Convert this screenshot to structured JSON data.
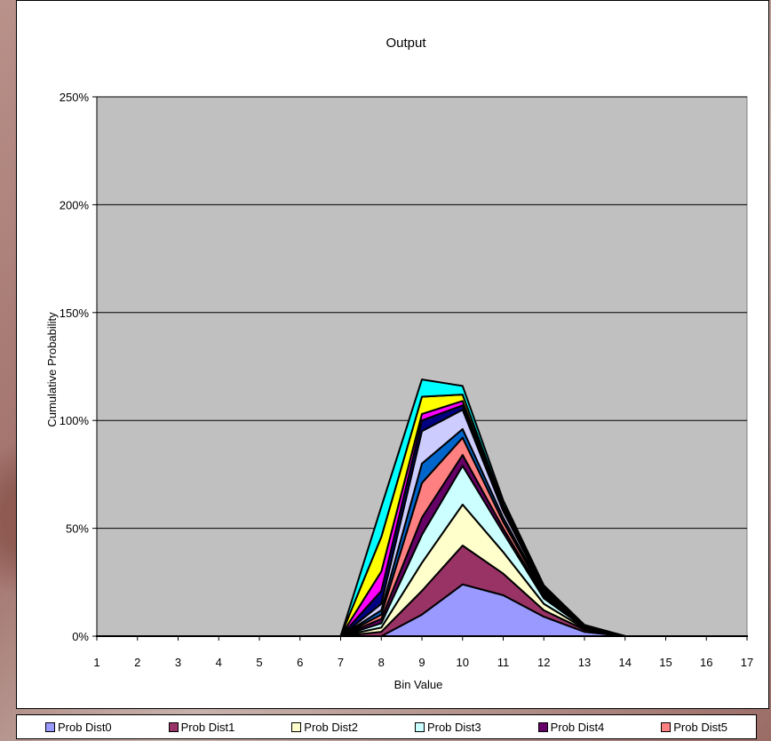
{
  "chart_data": {
    "type": "area",
    "stacked": true,
    "title": "Output",
    "xlabel": "Bin Value",
    "ylabel": "Cumulative Probability",
    "x": [
      1,
      2,
      3,
      4,
      5,
      6,
      7,
      8,
      9,
      10,
      11,
      12,
      13,
      14,
      15,
      16,
      17
    ],
    "y_ticks": [
      "0%",
      "50%",
      "100%",
      "150%",
      "200%",
      "250%"
    ],
    "ylim": [
      0,
      2.5
    ],
    "grid": true,
    "plot_background": "#c0c0c0",
    "legend_position": "bottom",
    "series": [
      {
        "name": "Prob Dist0",
        "color": "#9999ff",
        "values": [
          0,
          0,
          0,
          0,
          0,
          0,
          0,
          0,
          0.1,
          0.24,
          0.19,
          0.09,
          0.02,
          0,
          0,
          0,
          0
        ]
      },
      {
        "name": "Prob Dist1",
        "color": "#993366",
        "values": [
          0,
          0,
          0,
          0,
          0,
          0,
          0,
          0.02,
          0.11,
          0.18,
          0.1,
          0.03,
          0.01,
          0,
          0,
          0,
          0
        ]
      },
      {
        "name": "Prob Dist2",
        "color": "#ffffcc",
        "values": [
          0,
          0,
          0,
          0,
          0,
          0,
          0,
          0.02,
          0.13,
          0.19,
          0.1,
          0.03,
          0.005,
          0,
          0,
          0,
          0
        ]
      },
      {
        "name": "Prob Dist3",
        "color": "#ccffff",
        "values": [
          0,
          0,
          0,
          0,
          0,
          0,
          0,
          0.02,
          0.13,
          0.18,
          0.09,
          0.025,
          0.005,
          0,
          0,
          0,
          0
        ]
      },
      {
        "name": "Prob Dist4",
        "color": "#660066",
        "values": [
          0,
          0,
          0,
          0,
          0,
          0,
          0,
          0.02,
          0.08,
          0.05,
          0.02,
          0.01,
          0.002,
          0,
          0,
          0,
          0
        ]
      },
      {
        "name": "Prob Dist5",
        "color": "#ff8080",
        "values": [
          0,
          0,
          0,
          0,
          0,
          0,
          0,
          0.02,
          0.16,
          0.08,
          0.03,
          0.01,
          0.002,
          0,
          0,
          0,
          0
        ]
      },
      {
        "name": "",
        "color": "#0066cc",
        "values": [
          0,
          0,
          0,
          0,
          0,
          0,
          0,
          0.02,
          0.09,
          0.04,
          0.02,
          0.01,
          0.002,
          0,
          0,
          0,
          0
        ]
      },
      {
        "name": "",
        "color": "#ccccff",
        "values": [
          0,
          0,
          0,
          0,
          0,
          0,
          0,
          0.03,
          0.15,
          0.09,
          0.03,
          0.01,
          0.002,
          0,
          0,
          0,
          0
        ]
      },
      {
        "name": "",
        "color": "#000080",
        "values": [
          0,
          0,
          0,
          0,
          0,
          0,
          0,
          0.06,
          0.05,
          0.02,
          0.01,
          0.005,
          0.001,
          0,
          0,
          0,
          0
        ]
      },
      {
        "name": "",
        "color": "#ff00ff",
        "values": [
          0,
          0,
          0,
          0,
          0,
          0,
          0,
          0.09,
          0.03,
          0.02,
          0.01,
          0.005,
          0.001,
          0,
          0,
          0,
          0
        ]
      },
      {
        "name": "",
        "color": "#ffff00",
        "values": [
          0,
          0,
          0,
          0,
          0,
          0,
          0,
          0.16,
          0.08,
          0.03,
          0.01,
          0.005,
          0.001,
          0,
          0,
          0,
          0
        ]
      },
      {
        "name": "",
        "color": "#00ffff",
        "values": [
          0,
          0,
          0,
          0,
          0,
          0,
          0,
          0.14,
          0.08,
          0.04,
          0.02,
          0.005,
          0.001,
          0,
          0,
          0,
          0
        ]
      }
    ]
  },
  "legend": [
    {
      "label": "Prob Dist0",
      "color": "#9999ff"
    },
    {
      "label": "Prob Dist1",
      "color": "#993366"
    },
    {
      "label": "Prob Dist2",
      "color": "#ffffcc"
    },
    {
      "label": "Prob Dist3",
      "color": "#ccffff"
    },
    {
      "label": "Prob Dist4",
      "color": "#660066"
    },
    {
      "label": "Prob Dist5",
      "color": "#ff8080"
    }
  ]
}
